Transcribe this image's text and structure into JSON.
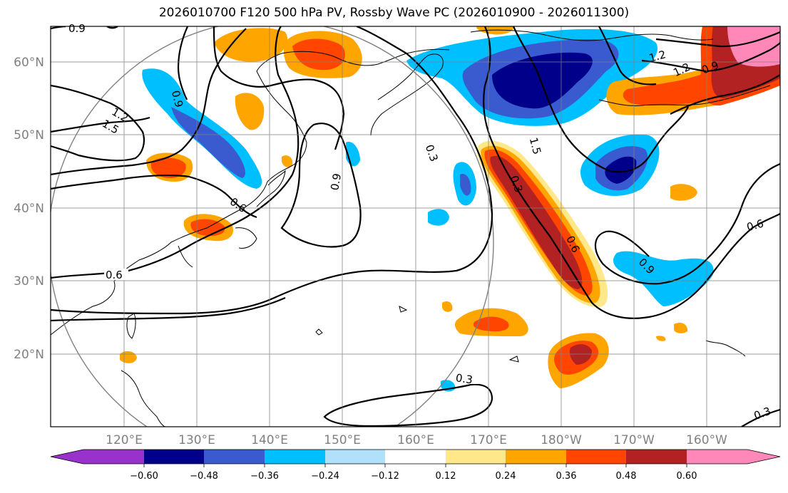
{
  "title": "2026010700 F120 500 hPa PV, Rossby Wave PC (2026010900 - 2026011300)",
  "lat_labels": [
    "60°N",
    "50°N",
    "40°N",
    "30°N",
    "20°N"
  ],
  "lon_labels": [
    "120°E",
    "130°E",
    "140°E",
    "150°E",
    "160°E",
    "170°E",
    "180°W",
    "170°W",
    "160°W"
  ],
  "colorbar": {
    "ticks": [
      "−0.60",
      "−0.48",
      "−0.36",
      "−0.24",
      "−0.12",
      "0.12",
      "0.24",
      "0.36",
      "0.48",
      "0.60"
    ],
    "colors": [
      "#9932cc",
      "#00008b",
      "#3a5bd0",
      "#00bfff",
      "#b0e0fa",
      "#ffffff",
      "#ffe88a",
      "#ffa500",
      "#ff4500",
      "#b22222",
      "#ff88b8"
    ]
  },
  "contour_labels": [
    "0.9",
    "1.2",
    "1.5",
    "0.6",
    "0.9",
    "0.3",
    "0.9",
    "0.3",
    "0.6",
    "0.9",
    "0.6",
    "0.6",
    "0.3",
    "0.3",
    "1.2",
    "1.2",
    "0.9",
    "1.5"
  ]
}
